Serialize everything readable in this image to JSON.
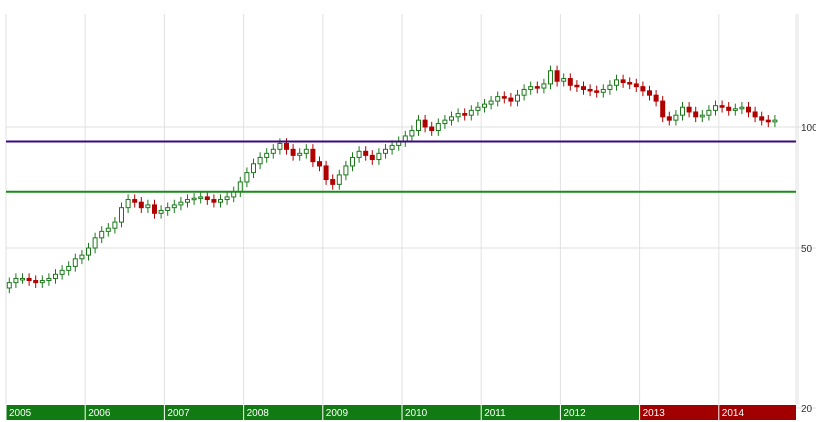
{
  "chart_data": {
    "type": "candlestick",
    "scale": "log",
    "ylim": [
      20,
      140
    ],
    "y_ticks": [
      "100",
      "50",
      "20"
    ],
    "grid": true,
    "colors": {
      "up_fill": "#ffffff",
      "up_border": "#1a7a1a",
      "down_fill": "#b00000",
      "down_border": "#b00000",
      "grid": "#e0e0e0",
      "band_up": "#127a12",
      "band_down": "#a00000"
    },
    "horizontal_lines": [
      {
        "value": 92,
        "color": "#3b0a7a"
      },
      {
        "value": 69,
        "color": "#1a8a1a"
      }
    ],
    "years": [
      {
        "label": "2005",
        "trend": "up"
      },
      {
        "label": "2006",
        "trend": "up"
      },
      {
        "label": "2007",
        "trend": "up"
      },
      {
        "label": "2008",
        "trend": "up"
      },
      {
        "label": "2009",
        "trend": "up"
      },
      {
        "label": "2010",
        "trend": "up"
      },
      {
        "label": "2011",
        "trend": "up"
      },
      {
        "label": "2012",
        "trend": "up"
      },
      {
        "label": "2013",
        "trend": "down"
      },
      {
        "label": "2014",
        "trend": "down"
      }
    ],
    "x_start": 2005.0,
    "step_months": 1,
    "closes": [
      41,
      42,
      42,
      41.5,
      41,
      41.5,
      42,
      43,
      44,
      45,
      47,
      48,
      50,
      53,
      55,
      56,
      58,
      63,
      66,
      65,
      63,
      64,
      61,
      62,
      63,
      64,
      65,
      66,
      66.5,
      67,
      66,
      65,
      66,
      67,
      69,
      73,
      77,
      81,
      84,
      86,
      88,
      91,
      88,
      85,
      86,
      88,
      82,
      80,
      74,
      72,
      76,
      80,
      84,
      87,
      85,
      83,
      86,
      88,
      90,
      92,
      95,
      98,
      104,
      100,
      98,
      102,
      104,
      106,
      108,
      107,
      110,
      112,
      114,
      116,
      119,
      118,
      116,
      120,
      124,
      126,
      125,
      128,
      138,
      130,
      132,
      127,
      126,
      124,
      123,
      122,
      124,
      127,
      131,
      129,
      128,
      126,
      123,
      120,
      116,
      106,
      104,
      107,
      112,
      109,
      106,
      107,
      110,
      113,
      112,
      110,
      111,
      112,
      109,
      106,
      104,
      103,
      104
    ]
  }
}
